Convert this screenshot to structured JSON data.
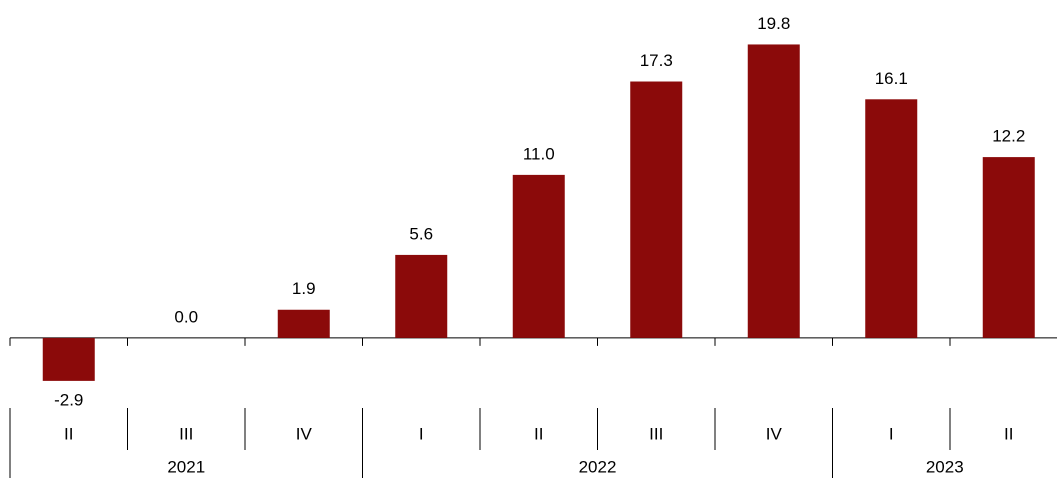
{
  "chart_data": {
    "type": "bar",
    "color": "#8b0a0a",
    "ylim": [
      -4.5,
      22.8
    ],
    "groups": [
      {
        "name": "2021",
        "categories": [
          "II",
          "III",
          "IV"
        ],
        "values": [
          -2.9,
          0.0,
          1.9
        ],
        "value_labels": [
          "-2.9",
          "0.0",
          "1.9"
        ]
      },
      {
        "name": "2022",
        "categories": [
          "I",
          "II",
          "III",
          "IV"
        ],
        "values": [
          5.6,
          11.0,
          17.3,
          19.8
        ],
        "value_labels": [
          "5.6",
          "11.0",
          "17.3",
          "19.8"
        ]
      },
      {
        "name": "2023",
        "categories": [
          "I",
          "II"
        ],
        "values": [
          16.1,
          12.2
        ],
        "value_labels": [
          "16.1",
          "12.2"
        ]
      }
    ]
  }
}
